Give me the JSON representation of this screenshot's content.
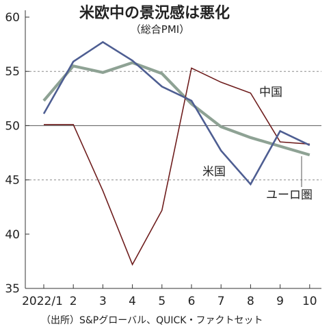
{
  "chart_data": {
    "type": "line",
    "title": "米欧中の景況感は悪化",
    "subtitle": "（総合PMI）",
    "source": "（出所）S&Pグローバル、QUICK・ファクトセット",
    "x_labels": [
      "2022/1",
      "2",
      "3",
      "4",
      "5",
      "6",
      "7",
      "8",
      "9",
      "10"
    ],
    "ylim": [
      35,
      60
    ],
    "y_ticks": [
      "35",
      "40",
      "45",
      "50",
      "55",
      "60"
    ],
    "y_dashed_gridlines": [
      45,
      55
    ],
    "y_solid_reference": 50,
    "series": [
      {
        "name": "中国",
        "color": "#6e1d1d",
        "values": [
          50.1,
          50.1,
          44.0,
          37.2,
          42.2,
          55.3,
          54.0,
          53.0,
          48.5,
          48.3
        ]
      },
      {
        "name": "米国",
        "color": "#4e5e92",
        "values": [
          51.1,
          55.9,
          57.7,
          56.0,
          53.6,
          52.3,
          47.7,
          44.6,
          49.5,
          48.2
        ]
      },
      {
        "name": "ユーロ圏",
        "color": "#8ea294",
        "values": [
          52.3,
          55.5,
          54.9,
          55.8,
          54.8,
          52.0,
          49.9,
          48.9,
          48.1,
          47.3
        ]
      }
    ]
  }
}
